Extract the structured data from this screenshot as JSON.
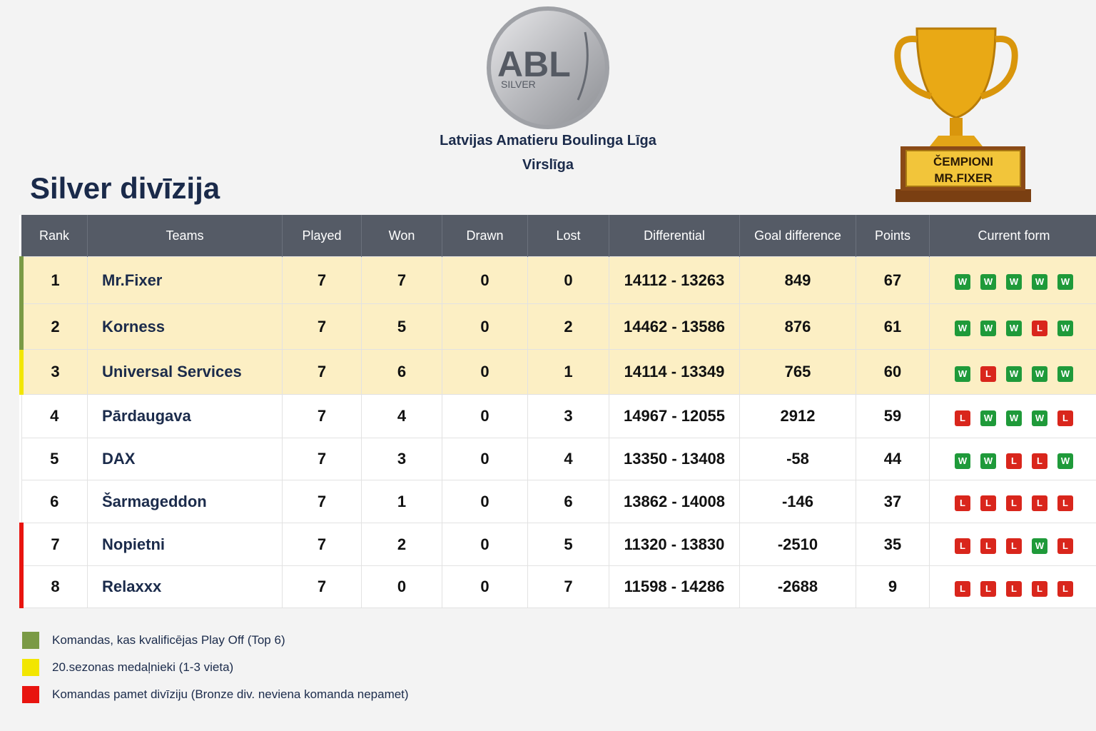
{
  "header": {
    "logo_text": "ABL",
    "logo_sub": "SILVER",
    "league": "Latvijas Amatieru Boulinga Līga",
    "level": "Virslīga",
    "title": "Silver divīzija"
  },
  "trophy": {
    "line1": "ČEMPIONI",
    "line2": "MR.FIXER"
  },
  "table": {
    "columns": [
      "Rank",
      "Teams",
      "Played",
      "Won",
      "Drawn",
      "Lost",
      "Differential",
      "Goal difference",
      "Points",
      "Current form"
    ],
    "form_colors": {
      "W": "#1f9a3a",
      "L": "#d9261c"
    },
    "rows": [
      {
        "cells": [
          1,
          "Mr.Fixer",
          7,
          7,
          0,
          0,
          "14112 - 13263",
          849,
          67
        ],
        "form": [
          "W",
          "W",
          "W",
          "W",
          "W"
        ],
        "marker": "#7a9a45",
        "highlight": true
      },
      {
        "cells": [
          2,
          "Korness",
          7,
          5,
          0,
          2,
          "14462 - 13586",
          876,
          61
        ],
        "form": [
          "W",
          "W",
          "W",
          "L",
          "W"
        ],
        "marker": "#7a9a45",
        "highlight": true
      },
      {
        "cells": [
          3,
          "Universal Services",
          7,
          6,
          0,
          1,
          "14114 - 13349",
          765,
          60
        ],
        "form": [
          "W",
          "L",
          "W",
          "W",
          "W"
        ],
        "marker": "#f2e600",
        "highlight": true
      },
      {
        "cells": [
          4,
          "Pārdaugava",
          7,
          4,
          0,
          3,
          "14967 - 12055",
          2912,
          59
        ],
        "form": [
          "L",
          "W",
          "W",
          "W",
          "L"
        ],
        "marker": null,
        "highlight": false
      },
      {
        "cells": [
          5,
          "DAX",
          7,
          3,
          0,
          4,
          "13350 - 13408",
          -58,
          44
        ],
        "form": [
          "W",
          "W",
          "L",
          "L",
          "W"
        ],
        "marker": null,
        "highlight": false
      },
      {
        "cells": [
          6,
          "Šarmageddon",
          7,
          1,
          0,
          6,
          "13862 - 14008",
          -146,
          37
        ],
        "form": [
          "L",
          "L",
          "L",
          "L",
          "L"
        ],
        "marker": null,
        "highlight": false
      },
      {
        "cells": [
          7,
          "Nopietni",
          7,
          2,
          0,
          5,
          "11320 - 13830",
          -2510,
          35
        ],
        "form": [
          "L",
          "L",
          "L",
          "W",
          "L"
        ],
        "marker": "#e8140f",
        "highlight": false
      },
      {
        "cells": [
          8,
          "Relaxxx",
          7,
          0,
          0,
          7,
          "11598 - 14286",
          -2688,
          9
        ],
        "form": [
          "L",
          "L",
          "L",
          "L",
          "L"
        ],
        "marker": "#e8140f",
        "highlight": false
      }
    ]
  },
  "legend": [
    {
      "color": "#7a9a45",
      "text": "Komandas, kas kvalificējas Play Off (Top 6)"
    },
    {
      "color": "#f2e600",
      "text": "20.sezonas medaļnieki (1-3 vieta)"
    },
    {
      "color": "#e8140f",
      "text": "Komandas pamet divīziju (Bronze div. neviena komanda nepamet)"
    }
  ]
}
